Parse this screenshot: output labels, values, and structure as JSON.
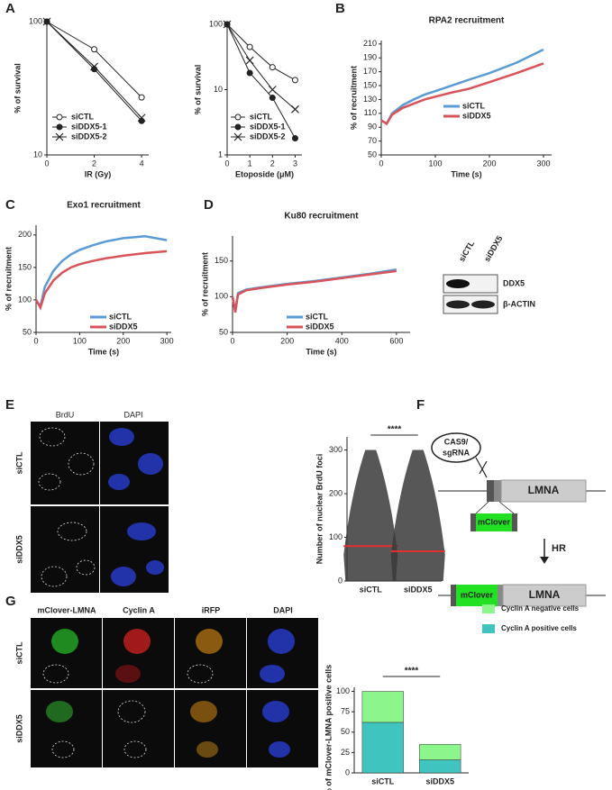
{
  "panel_labels": [
    "A",
    "B",
    "C",
    "D",
    "E",
    "F",
    "G"
  ],
  "blot": {
    "lanes": [
      "siCTL",
      "siDDX5"
    ],
    "bands": [
      "DDX5",
      "β-ACTIN"
    ]
  },
  "panel_e": {
    "channels": [
      "BrdU",
      "DAPI"
    ],
    "rows": [
      "siCTL",
      "siDDX5"
    ]
  },
  "panel_f": {
    "cas9": "CAS9/",
    "sgrna": "sgRNA",
    "gene": "LMNA",
    "insert": "mClover",
    "step": "HR"
  },
  "panel_g": {
    "channels": [
      "mClover-LMNA",
      "Cyclin A",
      "iRFP",
      "DAPI"
    ],
    "rows": [
      "siCTL",
      "siDDX5"
    ]
  },
  "chart_data": [
    {
      "type": "line",
      "xlabel": "IR (Gy)",
      "ylabel": "% of survival",
      "log_y": true,
      "x": [
        0,
        2,
        4
      ],
      "xlim": [
        0,
        4.3
      ],
      "xticks": [
        0,
        2,
        4
      ],
      "ylim": [
        10,
        100
      ],
      "yticks": [
        10,
        100
      ],
      "series": [
        {
          "name": "siCTL",
          "color": "#222",
          "marker": "open-circle",
          "values": [
            100,
            62,
            27
          ]
        },
        {
          "name": "siDDX5-1",
          "color": "#222",
          "marker": "filled-circle",
          "values": [
            100,
            44,
            18
          ]
        },
        {
          "name": "siDDX5-2",
          "color": "#222",
          "marker": "cross",
          "values": [
            100,
            46,
            19
          ]
        }
      ]
    },
    {
      "type": "line",
      "xlabel": "Etoposide (μM)",
      "ylabel": "% of survival",
      "log_y": true,
      "x": [
        0,
        1,
        2,
        3
      ],
      "xlim": [
        0,
        3.3
      ],
      "xticks": [
        0,
        1,
        2,
        3
      ],
      "ylim": [
        1,
        100
      ],
      "yticks": [
        1,
        10,
        100
      ],
      "series": [
        {
          "name": "siCTL",
          "color": "#222",
          "marker": "open-circle",
          "values": [
            100,
            45,
            22,
            14
          ]
        },
        {
          "name": "siDDX5-1",
          "color": "#222",
          "marker": "filled-circle",
          "values": [
            100,
            18,
            7.5,
            1.8
          ]
        },
        {
          "name": "siDDX5-2",
          "color": "#222",
          "marker": "cross",
          "values": [
            100,
            28,
            10,
            5
          ]
        }
      ]
    },
    {
      "type": "line",
      "title": "RPA2 recruitment",
      "xlabel": "Time (s)",
      "ylabel": "% of recruitment",
      "x": [
        0,
        10,
        20,
        40,
        60,
        80,
        100,
        130,
        160,
        200,
        250,
        300
      ],
      "xlim": [
        0,
        315
      ],
      "xticks": [
        0,
        100,
        200,
        300
      ],
      "ylim": [
        50,
        215
      ],
      "yticks": [
        50,
        70,
        90,
        110,
        130,
        150,
        170,
        190,
        210
      ],
      "series": [
        {
          "name": "siCTL",
          "color": "#5b9bd5",
          "values": [
            100,
            95,
            110,
            122,
            130,
            137,
            142,
            150,
            158,
            168,
            183,
            202
          ]
        },
        {
          "name": "siDDX5",
          "color": "#d9535a",
          "values": [
            100,
            95,
            108,
            118,
            124,
            130,
            134,
            140,
            145,
            155,
            168,
            182
          ]
        }
      ]
    },
    {
      "type": "line",
      "title": "Exo1 recruitment",
      "xlabel": "Time (s)",
      "ylabel": "% of recruitment",
      "x": [
        0,
        10,
        20,
        40,
        60,
        80,
        100,
        130,
        160,
        200,
        250,
        300
      ],
      "xlim": [
        0,
        310
      ],
      "xticks": [
        0,
        100,
        200,
        300
      ],
      "ylim": [
        50,
        215
      ],
      "yticks": [
        50,
        100,
        150,
        200
      ],
      "series": [
        {
          "name": "siCTL",
          "color": "#5b9bd5",
          "values": [
            100,
            90,
            120,
            145,
            160,
            170,
            177,
            184,
            190,
            195,
            198,
            192
          ]
        },
        {
          "name": "siDDX5",
          "color": "#d9535a",
          "values": [
            100,
            88,
            110,
            130,
            142,
            150,
            155,
            160,
            164,
            168,
            172,
            175
          ]
        }
      ]
    },
    {
      "type": "line",
      "title": "Ku80 recruitment",
      "xlabel": "Time (s)",
      "ylabel": "% of recruitment",
      "x": [
        0,
        10,
        20,
        50,
        100,
        200,
        300,
        400,
        500,
        600
      ],
      "xlim": [
        0,
        650
      ],
      "xticks": [
        0,
        200,
        400,
        600
      ],
      "ylim": [
        50,
        185
      ],
      "yticks": [
        50,
        100,
        150
      ],
      "series": [
        {
          "name": "siCTL",
          "color": "#5b9bd5",
          "values": [
            100,
            80,
            105,
            110,
            113,
            118,
            122,
            127,
            132,
            138
          ]
        },
        {
          "name": "siDDX5",
          "color": "#d9535a",
          "values": [
            100,
            78,
            103,
            109,
            112,
            117,
            121,
            126,
            131,
            136
          ]
        }
      ]
    },
    {
      "type": "dot",
      "ylabel": "Number of nuclear BrdU foci",
      "annotation": "****",
      "categories": [
        "siCTL",
        "siDDX5"
      ],
      "values": [
        80,
        68
      ],
      "color": "#e03030",
      "ylim": [
        0,
        330
      ],
      "yticks": [
        0,
        100,
        200,
        300
      ]
    },
    {
      "type": "stacked_bar",
      "ylabel": "% of mClover-LMNA positive cells",
      "annotation": "****",
      "categories": [
        "siCTL",
        "siDDX5"
      ],
      "ylim": [
        0,
        105
      ],
      "yticks": [
        0,
        25,
        50,
        75,
        100
      ],
      "series": [
        {
          "name": "Cyclin A positive cells",
          "color": "#3fc4c0",
          "values": [
            62,
            16
          ]
        },
        {
          "name": "Cyclin A negative cells",
          "color": "#8cf58c",
          "values": [
            38,
            19
          ]
        }
      ]
    }
  ]
}
